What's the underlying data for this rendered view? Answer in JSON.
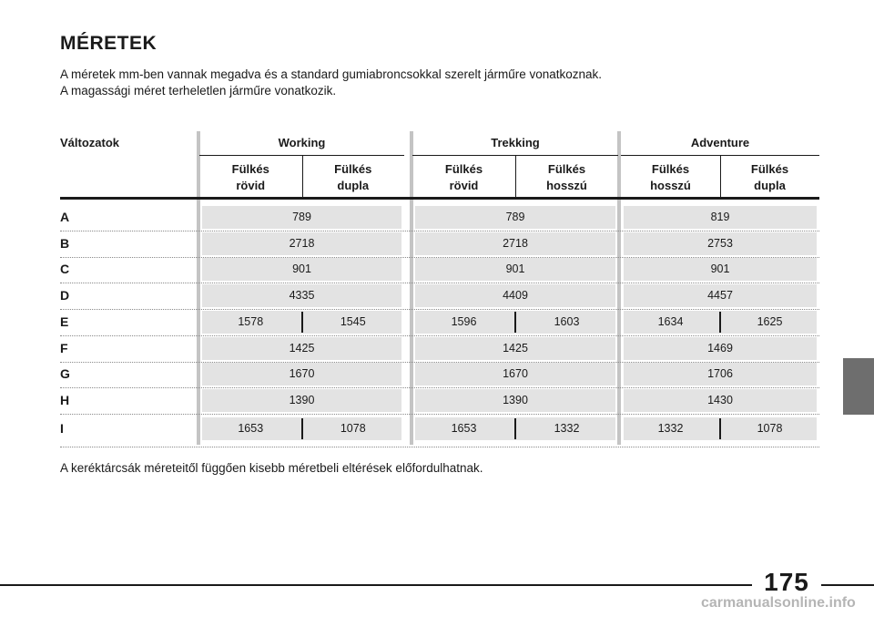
{
  "title": "MÉRETEK",
  "intro": [
    "A méretek mm-ben vannak megadva és a standard gumiabroncsokkal szerelt járműre vonatkoznak.",
    "A magassági méret terheletlen járműre vonatkozik."
  ],
  "table": {
    "row_header": "Változatok",
    "groups": [
      {
        "name": "Working",
        "sub": [
          [
            "Fülkés",
            "rövid"
          ],
          [
            "Fülkés",
            "dupla"
          ]
        ]
      },
      {
        "name": "Trekking",
        "sub": [
          [
            "Fülkés",
            "rövid"
          ],
          [
            "Fülkés",
            "hosszú"
          ]
        ]
      },
      {
        "name": "Adventure",
        "sub": [
          [
            "Fülkés",
            "hosszú"
          ],
          [
            "Fülkés",
            "dupla"
          ]
        ]
      }
    ],
    "rows": [
      {
        "label": "A",
        "values": [
          [
            "789"
          ],
          [
            "789"
          ],
          [
            "819"
          ]
        ]
      },
      {
        "label": "B",
        "values": [
          [
            "2718"
          ],
          [
            "2718"
          ],
          [
            "2753"
          ]
        ]
      },
      {
        "label": "C",
        "values": [
          [
            "901"
          ],
          [
            "901"
          ],
          [
            "901"
          ]
        ]
      },
      {
        "label": "D",
        "values": [
          [
            "4335"
          ],
          [
            "4409"
          ],
          [
            "4457"
          ]
        ]
      },
      {
        "label": "E",
        "values": [
          [
            "1578",
            "1545"
          ],
          [
            "1596",
            "1603"
          ],
          [
            "1634",
            "1625"
          ]
        ]
      },
      {
        "label": "F",
        "values": [
          [
            "1425"
          ],
          [
            "1425"
          ],
          [
            "1469"
          ]
        ]
      },
      {
        "label": "G",
        "values": [
          [
            "1670"
          ],
          [
            "1670"
          ],
          [
            "1706"
          ]
        ]
      },
      {
        "label": "H",
        "values": [
          [
            "1390"
          ],
          [
            "1390"
          ],
          [
            "1430"
          ]
        ]
      },
      {
        "label": "I",
        "values": [
          [
            "1653",
            "1078"
          ],
          [
            "1653",
            "1332"
          ],
          [
            "1332",
            "1078"
          ]
        ]
      }
    ]
  },
  "footnote": "A keréktárcsák méreteitől függően kisebb méretbeli eltérések előfordulhatnak.",
  "page_number": "175",
  "watermark": "carmanualsonline.info"
}
